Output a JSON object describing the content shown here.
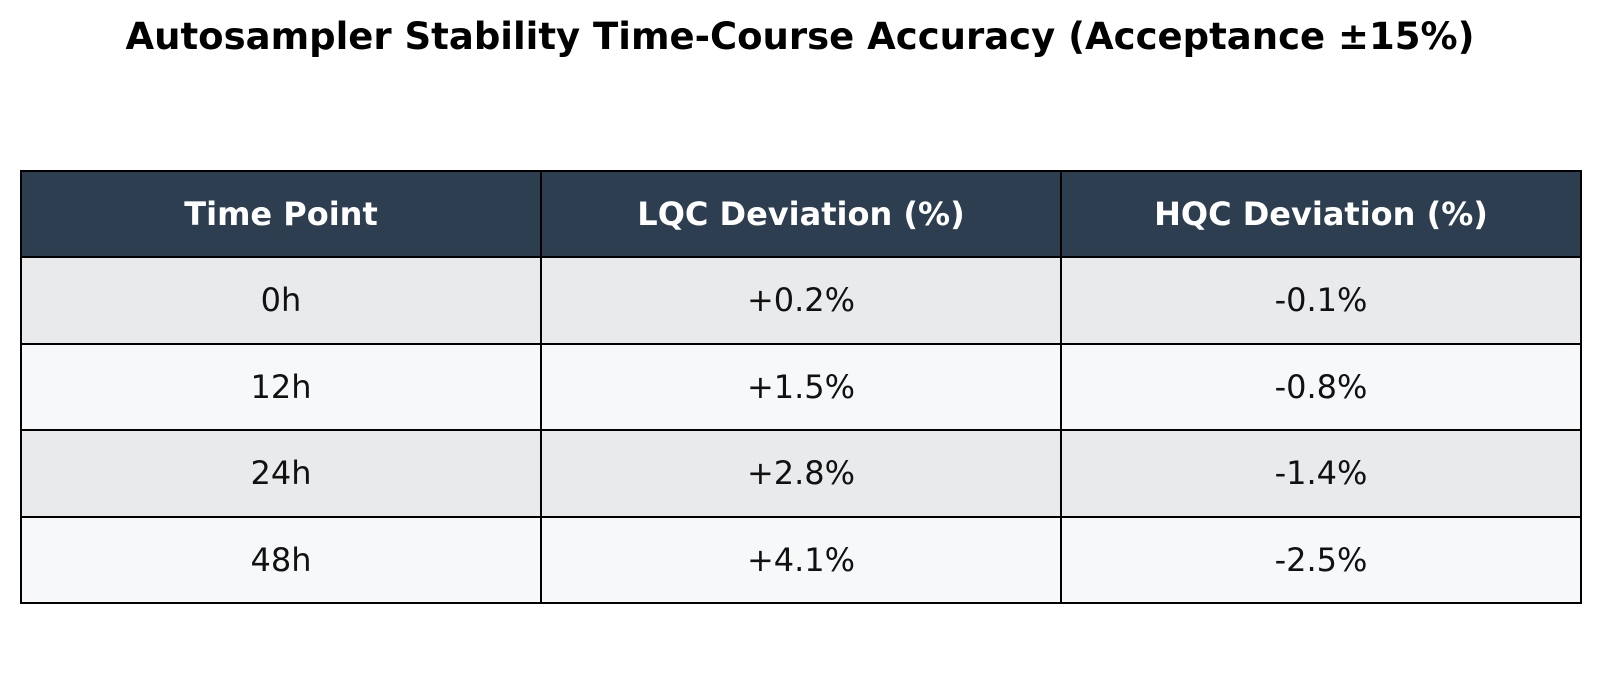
{
  "chart_data": {
    "type": "table",
    "title": "Autosampler Stability Time-Course Accuracy (Acceptance ±15%)",
    "columns": [
      "Time Point",
      "LQC Deviation (%)",
      "HQC Deviation (%)"
    ],
    "rows": [
      [
        "0h",
        "+0.2%",
        "-0.1%"
      ],
      [
        "12h",
        "+1.5%",
        "-0.8%"
      ],
      [
        "24h",
        "+2.8%",
        "-1.4%"
      ],
      [
        "48h",
        "+4.1%",
        "-2.5%"
      ]
    ],
    "series": [
      {
        "name": "LQC Deviation (%)",
        "values": [
          0.2,
          1.5,
          2.8,
          4.1
        ]
      },
      {
        "name": "HQC Deviation (%)",
        "values": [
          -0.1,
          -0.8,
          -1.4,
          -2.5
        ]
      }
    ],
    "categories": [
      "0h",
      "12h",
      "24h",
      "48h"
    ]
  },
  "colors": {
    "header_bg": "#2c3e50",
    "header_text": "#ffffff",
    "row_odd_bg": "#e9eaec",
    "row_even_bg": "#f7f8fa",
    "border": "#000000"
  }
}
